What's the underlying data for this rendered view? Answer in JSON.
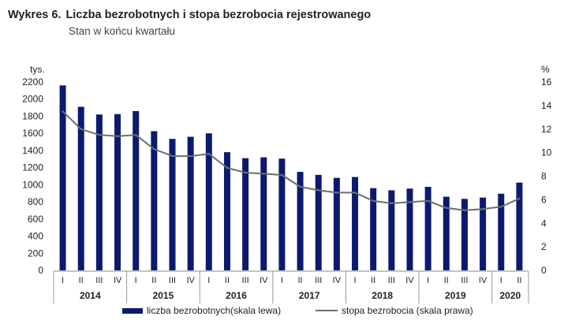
{
  "header": {
    "figure_number": "Wykres 6.",
    "title": "Liczba bezrobotnych i stopa bezrobocia rejestrowanego",
    "subtitle": "Stan w końcu kwartału"
  },
  "chart_data": {
    "type": "bar",
    "left_unit": "tys.",
    "right_unit": "%",
    "categories": [
      "I",
      "II",
      "III",
      "IV",
      "I",
      "II",
      "III",
      "IV",
      "I",
      "II",
      "III",
      "IV",
      "I",
      "II",
      "III",
      "IV",
      "I",
      "II",
      "III",
      "IV",
      "I",
      "II",
      "III",
      "IV",
      "I",
      "II"
    ],
    "years": [
      {
        "label": "2014",
        "count": 4
      },
      {
        "label": "2015",
        "count": 4
      },
      {
        "label": "2016",
        "count": 4
      },
      {
        "label": "2017",
        "count": 4
      },
      {
        "label": "2018",
        "count": 4
      },
      {
        "label": "2019",
        "count": 4
      },
      {
        "label": "2020",
        "count": 2
      }
    ],
    "ylim_left": [
      0,
      2200
    ],
    "yticks_left": [
      0,
      200,
      400,
      600,
      800,
      1000,
      1200,
      1400,
      1600,
      1800,
      2000,
      2200
    ],
    "ylim_right": [
      0,
      16
    ],
    "yticks_right": [
      0,
      2,
      4,
      6,
      8,
      10,
      12,
      14,
      16
    ],
    "series": [
      {
        "name": "liczba bezrobotnych(skala lewa)",
        "type": "bar",
        "axis": "left",
        "color": "#0c1a6e",
        "values": [
          2160,
          1910,
          1820,
          1825,
          1860,
          1625,
          1535,
          1560,
          1600,
          1380,
          1310,
          1320,
          1305,
          1150,
          1115,
          1080,
          1090,
          960,
          935,
          955,
          975,
          860,
          835,
          850,
          895,
          1025
        ]
      },
      {
        "name": "stopa bezrobocia (skala prawa)",
        "type": "line",
        "axis": "right",
        "color": "#6e6e6e",
        "values": [
          13.5,
          12.0,
          11.5,
          11.4,
          11.5,
          10.3,
          9.7,
          9.7,
          9.9,
          8.7,
          8.3,
          8.2,
          8.1,
          7.1,
          6.8,
          6.6,
          6.6,
          5.9,
          5.7,
          5.8,
          5.9,
          5.3,
          5.1,
          5.2,
          5.4,
          6.1
        ]
      }
    ],
    "legend_position": "bottom",
    "grid": false
  }
}
